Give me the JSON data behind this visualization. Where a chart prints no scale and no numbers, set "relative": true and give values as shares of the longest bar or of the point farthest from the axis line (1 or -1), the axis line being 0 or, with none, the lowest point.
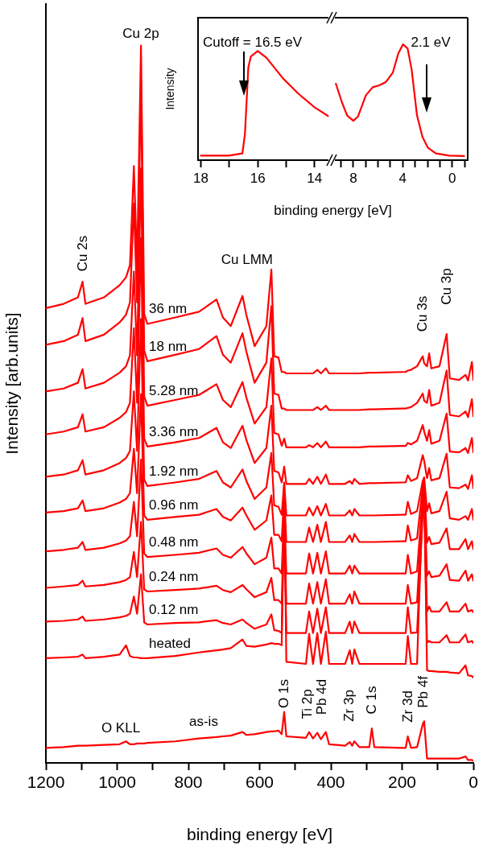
{
  "chart_data": [
    {
      "type": "line",
      "xlabel": "binding energy [eV]",
      "ylabel": "Intensity [arb.units]",
      "relative": true,
      "xlim": [
        1200,
        0
      ],
      "xticks": [
        1200,
        {
          "value": 1100,
          "label": null
        },
        1000,
        {
          "value": 900,
          "label": null
        },
        800,
        {
          "value": 700,
          "label": null
        },
        600,
        {
          "value": 500,
          "label": null
        },
        400,
        {
          "value": 300,
          "label": null
        },
        200,
        {
          "value": 100,
          "label": null
        },
        0
      ],
      "x": [
        1200,
        1150,
        1110,
        1097,
        1089,
        1037,
        993,
        975,
        964,
        953,
        944,
        933,
        924,
        915,
        837,
        770,
        721,
        703,
        681,
        648,
        637,
        614,
        581,
        567,
        559,
        547,
        538,
        531,
        525,
        470,
        461,
        450,
        438,
        428,
        414,
        405,
        360,
        347,
        340,
        334,
        320,
        292,
        285,
        278,
        200,
        190,
        184,
        175,
        158,
        142,
        138,
        130,
        124,
        118,
        95,
        75,
        66,
        40,
        22,
        15,
        4,
        0
      ],
      "series": [
        {
          "name": "36 nm",
          "color": "#ff0000",
          "values": [
            0.634,
            0.64,
            0.649,
            0.671,
            0.64,
            0.649,
            0.666,
            0.677,
            0.694,
            0.832,
            0.694,
            1,
            0.626,
            0.612,
            0.621,
            0.629,
            0.646,
            0.621,
            0.609,
            0.651,
            0.624,
            0.581,
            0.609,
            0.688,
            0.567,
            0.565,
            0.545,
            0.545,
            0.543,
            0.543,
            0.543,
            0.543,
            0.548,
            0.543,
            0.55,
            0.543,
            0.543,
            0.543,
            0.543,
            0.543,
            0.543,
            0.544,
            0.544,
            0.544,
            0.545,
            0.545,
            0.547,
            0.548,
            0.553,
            0.567,
            0.557,
            0.553,
            0.571,
            0.55,
            0.553,
            0.598,
            0.536,
            0.534,
            0.541,
            0.533,
            0.559,
            0.534
          ]
        },
        {
          "name": "18 nm",
          "color": "#ff0000",
          "values": [
            0.583,
            0.588,
            0.597,
            0.62,
            0.588,
            0.597,
            0.614,
            0.625,
            0.642,
            0.78,
            0.642,
            0.949,
            0.575,
            0.56,
            0.569,
            0.577,
            0.595,
            0.569,
            0.558,
            0.599,
            0.573,
            0.53,
            0.558,
            0.637,
            0.515,
            0.513,
            0.494,
            0.494,
            0.492,
            0.492,
            0.492,
            0.492,
            0.496,
            0.492,
            0.498,
            0.492,
            0.492,
            0.492,
            0.492,
            0.492,
            0.492,
            0.493,
            0.493,
            0.493,
            0.494,
            0.494,
            0.495,
            0.496,
            0.502,
            0.515,
            0.505,
            0.502,
            0.52,
            0.498,
            0.502,
            0.547,
            0.485,
            0.483,
            0.49,
            0.482,
            0.507,
            0.483
          ]
        },
        {
          "name": "5.28 nm",
          "color": "#ff0000",
          "values": [
            0.518,
            0.522,
            0.53,
            0.549,
            0.522,
            0.53,
            0.544,
            0.553,
            0.568,
            0.685,
            0.568,
            0.829,
            0.511,
            0.498,
            0.506,
            0.513,
            0.528,
            0.506,
            0.496,
            0.531,
            0.509,
            0.473,
            0.496,
            0.564,
            0.46,
            0.458,
            0.442,
            0.452,
            0.44,
            0.44,
            0.443,
            0.44,
            0.446,
            0.44,
            0.448,
            0.44,
            0.44,
            0.44,
            0.44,
            0.44,
            0.44,
            0.441,
            0.441,
            0.441,
            0.442,
            0.442,
            0.446,
            0.444,
            0.449,
            0.471,
            0.462,
            0.449,
            0.464,
            0.445,
            0.449,
            0.487,
            0.434,
            0.433,
            0.439,
            0.432,
            0.453,
            0.433
          ]
        },
        {
          "name": "3.36 nm",
          "color": "#ff0000",
          "values": [
            0.458,
            0.462,
            0.468,
            0.486,
            0.462,
            0.468,
            0.481,
            0.489,
            0.502,
            0.606,
            0.502,
            0.732,
            0.452,
            0.441,
            0.447,
            0.453,
            0.467,
            0.447,
            0.439,
            0.47,
            0.45,
            0.418,
            0.439,
            0.498,
            0.407,
            0.405,
            0.391,
            0.413,
            0.389,
            0.389,
            0.396,
            0.389,
            0.399,
            0.389,
            0.402,
            0.389,
            0.389,
            0.393,
            0.389,
            0.396,
            0.389,
            0.39,
            0.39,
            0.39,
            0.391,
            0.391,
            0.401,
            0.393,
            0.397,
            0.429,
            0.421,
            0.397,
            0.411,
            0.394,
            0.397,
            0.431,
            0.384,
            0.383,
            0.388,
            0.382,
            0.401,
            0.383
          ]
        },
        {
          "name": "1.92 nm",
          "color": "#ff0000",
          "values": [
            0.399,
            0.402,
            0.408,
            0.422,
            0.402,
            0.408,
            0.418,
            0.425,
            0.435,
            0.518,
            0.435,
            0.619,
            0.395,
            0.386,
            0.391,
            0.396,
            0.407,
            0.391,
            0.384,
            0.409,
            0.393,
            0.368,
            0.384,
            0.432,
            0.359,
            0.357,
            0.346,
            0.391,
            0.345,
            0.345,
            0.356,
            0.345,
            0.358,
            0.345,
            0.361,
            0.345,
            0.345,
            0.352,
            0.345,
            0.354,
            0.345,
            0.345,
            0.345,
            0.345,
            0.346,
            0.346,
            0.364,
            0.347,
            0.351,
            0.393,
            0.398,
            0.351,
            0.362,
            0.348,
            0.351,
            0.378,
            0.341,
            0.339,
            0.344,
            0.339,
            0.354,
            0.339
          ]
        },
        {
          "name": "0.96 nm",
          "color": "#ff0000",
          "values": [
            0.349,
            0.351,
            0.355,
            0.366,
            0.351,
            0.355,
            0.363,
            0.368,
            0.376,
            0.438,
            0.376,
            0.514,
            0.345,
            0.339,
            0.343,
            0.346,
            0.354,
            0.343,
            0.338,
            0.356,
            0.345,
            0.325,
            0.338,
            0.373,
            0.318,
            0.318,
            0.309,
            0.376,
            0.308,
            0.308,
            0.328,
            0.308,
            0.332,
            0.308,
            0.336,
            0.308,
            0.308,
            0.317,
            0.308,
            0.319,
            0.308,
            0.308,
            0.308,
            0.308,
            0.309,
            0.309,
            0.331,
            0.31,
            0.313,
            0.385,
            0.393,
            0.307,
            0.315,
            0.305,
            0.307,
            0.327,
            0.298,
            0.298,
            0.312,
            0.298,
            0.309,
            0.298
          ]
        },
        {
          "name": "0.48 nm",
          "color": "#ff0000",
          "values": [
            0.295,
            0.297,
            0.3,
            0.308,
            0.297,
            0.3,
            0.306,
            0.31,
            0.316,
            0.364,
            0.316,
            0.423,
            0.292,
            0.287,
            0.29,
            0.293,
            0.299,
            0.29,
            0.286,
            0.301,
            0.292,
            0.277,
            0.286,
            0.314,
            0.271,
            0.271,
            0.264,
            0.354,
            0.264,
            0.264,
            0.292,
            0.264,
            0.293,
            0.264,
            0.295,
            0.264,
            0.264,
            0.275,
            0.264,
            0.275,
            0.264,
            0.264,
            0.264,
            0.264,
            0.264,
            0.264,
            0.29,
            0.264,
            0.267,
            0.372,
            0.38,
            0.261,
            0.267,
            0.259,
            0.261,
            0.277,
            0.255,
            0.254,
            0.268,
            0.254,
            0.263,
            0.254
          ]
        },
        {
          "name": "0.24 nm",
          "color": "#ff0000",
          "values": [
            0.244,
            0.246,
            0.248,
            0.254,
            0.246,
            0.248,
            0.252,
            0.255,
            0.259,
            0.294,
            0.259,
            0.336,
            0.242,
            0.239,
            0.241,
            0.243,
            0.247,
            0.241,
            0.238,
            0.248,
            0.242,
            0.231,
            0.238,
            0.258,
            0.227,
            0.227,
            0.222,
            0.345,
            0.222,
            0.222,
            0.25,
            0.222,
            0.252,
            0.222,
            0.256,
            0.222,
            0.222,
            0.235,
            0.222,
            0.239,
            0.222,
            0.222,
            0.222,
            0.222,
            0.222,
            0.222,
            0.248,
            0.222,
            0.224,
            0.362,
            0.374,
            0.211,
            0.218,
            0.211,
            0.211,
            0.224,
            0.211,
            0.211,
            0.222,
            0.211,
            0.213,
            0.21
          ]
        },
        {
          "name": "0.12 nm",
          "color": "#ff0000",
          "values": [
            0.197,
            0.198,
            0.2,
            0.204,
            0.198,
            0.2,
            0.203,
            0.205,
            0.208,
            0.232,
            0.208,
            0.263,
            0.196,
            0.193,
            0.195,
            0.196,
            0.199,
            0.195,
            0.193,
            0.2,
            0.195,
            0.187,
            0.193,
            0.207,
            0.185,
            0.184,
            0.181,
            0.349,
            0.181,
            0.181,
            0.211,
            0.181,
            0.215,
            0.181,
            0.217,
            0.181,
            0.181,
            0.197,
            0.181,
            0.197,
            0.181,
            0.181,
            0.181,
            0.181,
            0.181,
            0.181,
            0.217,
            0.181,
            0.182,
            0.349,
            0.366,
            0.168,
            0.17,
            0.168,
            0.168,
            0.178,
            0.168,
            0.168,
            0.179,
            0.168,
            0.17,
            0.167
          ]
        },
        {
          "name": "heated",
          "color": "#ff0000",
          "values": [
            0.146,
            0.147,
            0.148,
            0.151,
            0.146,
            0.148,
            0.151,
            0.164,
            0.149,
            0.147,
            0.147,
            0.146,
            0.146,
            0.146,
            0.149,
            0.154,
            0.157,
            0.158,
            0.16,
            0.172,
            0.163,
            0.162,
            0.165,
            0.167,
            0.166,
            0.166,
            0.164,
            0.387,
            0.141,
            0.138,
            0.18,
            0.138,
            0.181,
            0.138,
            0.183,
            0.138,
            0.138,
            0.157,
            0.138,
            0.158,
            0.138,
            0.138,
            0.138,
            0.138,
            0.138,
            0.138,
            0.177,
            0.138,
            0.138,
            0.379,
            0.391,
            0.129,
            0.128,
            0.128,
            0.127,
            0.127,
            0.126,
            0.125,
            0.136,
            0.122,
            0.121,
            0.119
          ]
        },
        {
          "name": "as-is",
          "color": "#ff0000",
          "values": [
            0.021,
            0.022,
            0.024,
            0.024,
            0.024,
            0.025,
            0.026,
            0.03,
            0.026,
            0.026,
            0.027,
            0.027,
            0.027,
            0.028,
            0.03,
            0.034,
            0.036,
            0.037,
            0.038,
            0.043,
            0.039,
            0.04,
            0.043,
            0.044,
            0.044,
            0.045,
            0.04,
            0.071,
            0.037,
            0.035,
            0.043,
            0.034,
            0.042,
            0.033,
            0.043,
            0.026,
            0.024,
            0.029,
            0.024,
            0.03,
            0.022,
            0.022,
            0.048,
            0.022,
            0.021,
            0.021,
            0.037,
            0.021,
            0.022,
            0.054,
            0.058,
            0.006,
            0.006,
            0.006,
            0.006,
            0.006,
            0.006,
            0.006,
            0.009,
            0.004,
            0.004,
            0.003
          ]
        }
      ],
      "annotations": [
        "Cu 2p",
        "Cu 2s",
        "Cu LMM",
        "Cu 3s",
        "Cu 3p",
        "O KLL",
        "O 1s",
        "Ti 2p",
        "Pb 4d",
        "Zr 3p",
        "C 1s",
        "Zr 3d",
        "Pb 4f"
      ]
    },
    {
      "type": "line",
      "xlabel": "binding energy [eV]",
      "ylabel": "Intensity",
      "relative": true,
      "color": "#ff0000",
      "xlim": [
        18.1,
        13.4
      ],
      "xticks": [
        18,
        {
          "value": 17,
          "label": null
        },
        16,
        {
          "value": 15,
          "label": null
        },
        14
      ],
      "x": [
        18.0,
        17.01,
        16.54,
        16.45,
        16.33,
        16.24,
        16.0,
        15.69,
        15.13,
        14.56,
        14.0,
        13.53
      ],
      "values": [
        0.041,
        0.041,
        0.062,
        0.239,
        0.852,
        0.951,
        1,
        0.938,
        0.755,
        0.607,
        0.484,
        0.406
      ],
      "annotations": [
        "Cutoff = 16.5 eV"
      ]
    },
    {
      "type": "line",
      "relative": true,
      "color": "#ff0000",
      "xlim": [
        9.75,
        -1.25
      ],
      "xticks": [
        {
          "value": 9,
          "label": null
        },
        8,
        {
          "value": 7,
          "label": null
        },
        {
          "value": 6,
          "label": null
        },
        {
          "value": 5,
          "label": null
        },
        4,
        {
          "value": 3,
          "label": null
        },
        {
          "value": 2,
          "label": null
        },
        {
          "value": 1,
          "label": null
        },
        0,
        {
          "value": -1,
          "label": null
        }
      ],
      "x": [
        9.41,
        8.93,
        8.5,
        8.0,
        7.63,
        6.98,
        6.43,
        5.89,
        5.35,
        4.8,
        4.37,
        3.98,
        3.61,
        3.28,
        2.85,
        2.41,
        1.98,
        1.33,
        0.24,
        -0.96
      ],
      "values": [
        0.66,
        0.502,
        0.387,
        0.34,
        0.375,
        0.56,
        0.63,
        0.646,
        0.676,
        0.757,
        0.919,
        1,
        0.965,
        0.78,
        0.387,
        0.201,
        0.109,
        0.058,
        0.039,
        0.035
      ],
      "annotations": [
        "2.1 eV"
      ]
    }
  ]
}
